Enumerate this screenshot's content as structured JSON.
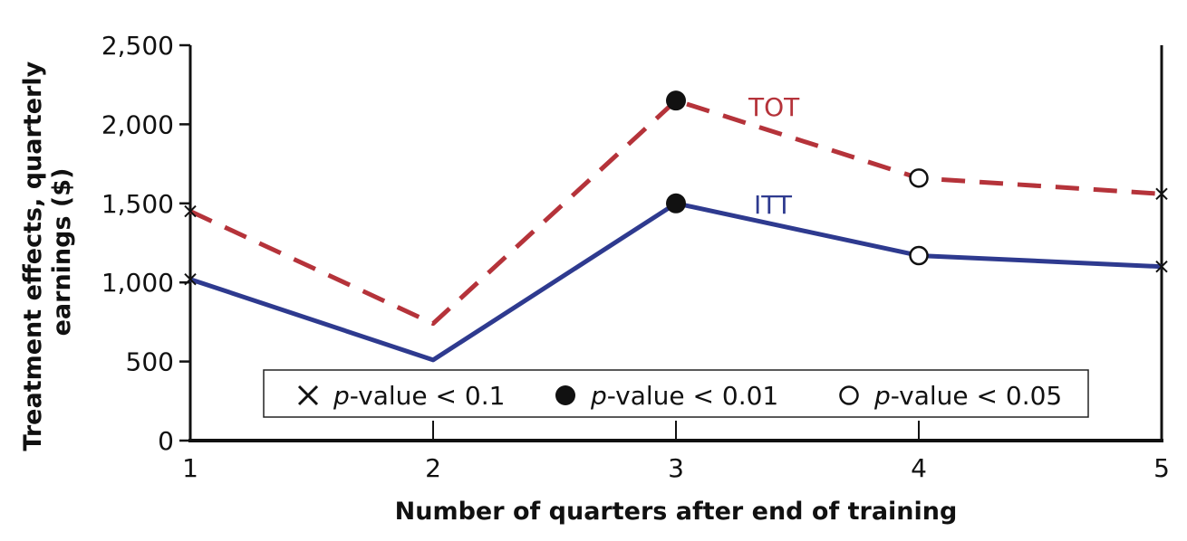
{
  "chart_data": {
    "type": "line",
    "title": "",
    "xlabel": "Number of quarters after end of training",
    "ylabel": "Treatment effects, quarterly earnings ($)",
    "ylabel_lines": [
      "Treatment effects, quarterly",
      "earnings ($)"
    ],
    "x": [
      1,
      2,
      3,
      4,
      5
    ],
    "x_tick_labels": [
      "1",
      "2",
      "3",
      "4",
      "5"
    ],
    "xlim": [
      1,
      5
    ],
    "ylim": [
      0,
      2500
    ],
    "y_ticks": [
      0,
      500,
      1000,
      1500,
      2000,
      2500
    ],
    "y_tick_labels": [
      "0",
      "500",
      "1,000",
      "1,500",
      "2,000",
      "2,500"
    ],
    "grid": false,
    "series": [
      {
        "name": "TOT",
        "color": "#b5333a",
        "dash": "dashed",
        "values": [
          1450,
          740,
          2150,
          1660,
          1560
        ],
        "markers": [
          "x",
          "none",
          "filled-circle",
          "open-circle",
          "x"
        ]
      },
      {
        "name": "ITT",
        "color": "#2e3a8f",
        "dash": "solid",
        "values": [
          1020,
          510,
          1500,
          1170,
          1100
        ],
        "markers": [
          "x",
          "none",
          "filled-circle",
          "open-circle",
          "x"
        ]
      }
    ],
    "legend": {
      "placement": "bottom-center",
      "entries": [
        {
          "marker": "x",
          "label_italic": "p",
          "label_rest": "-value < 0.1"
        },
        {
          "marker": "filled-circle",
          "label_italic": "p",
          "label_rest": "-value < 0.01"
        },
        {
          "marker": "open-circle",
          "label_italic": "p",
          "label_rest": "-value < 0.05"
        }
      ]
    }
  }
}
